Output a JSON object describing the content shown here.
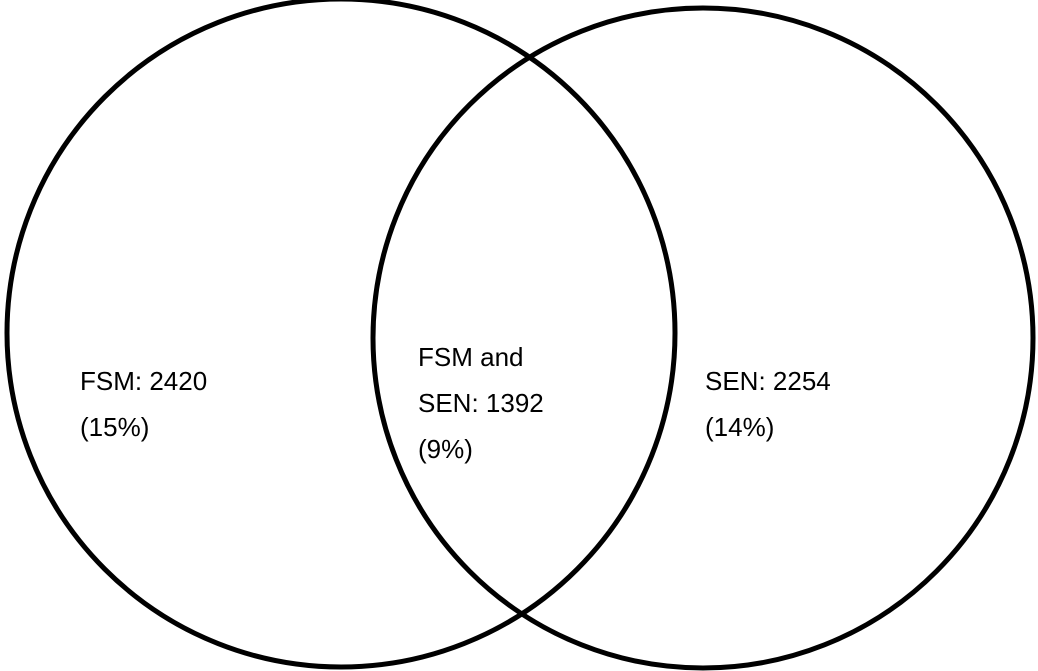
{
  "regions": [
    {
      "lines": [
        "FSM: 2420",
        "(15%)"
      ]
    },
    {
      "lines": [
        "FSM and",
        "SEN: 1392",
        "(9%)"
      ]
    },
    {
      "lines": [
        "SEN: 2254",
        "(14%)"
      ]
    }
  ]
}
